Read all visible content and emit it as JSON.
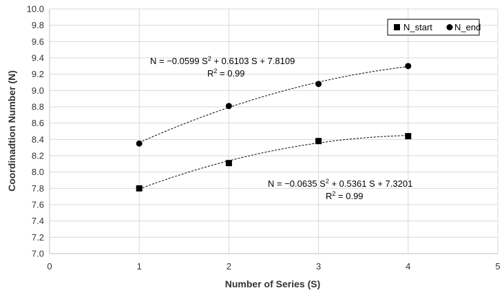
{
  "chart_data": {
    "type": "scatter",
    "title": "",
    "xlabel": "Number of Series (S)",
    "ylabel": "Coordinadtion Number (N)",
    "xlim": [
      0,
      5
    ],
    "ylim": [
      7.0,
      10.0
    ],
    "x_ticks": [
      "0",
      "1",
      "2",
      "3",
      "4",
      "5"
    ],
    "y_ticks": [
      "7.0",
      "7.2",
      "7.4",
      "7.6",
      "7.8",
      "8.0",
      "8.2",
      "8.4",
      "8.6",
      "8.8",
      "9.0",
      "9.2",
      "9.4",
      "9.6",
      "9.8",
      "10.0"
    ],
    "grid": true,
    "legend_position": "top-right",
    "series": [
      {
        "name": "N_start",
        "marker": "square",
        "color": "#000000",
        "x": [
          1,
          2,
          3,
          4
        ],
        "y": [
          7.8,
          8.11,
          8.38,
          8.44
        ],
        "trendline": {
          "type": "polynomial",
          "order": 2,
          "a": -0.0635,
          "b": 0.5361,
          "c": 7.3201
        }
      },
      {
        "name": "N_end",
        "marker": "circle",
        "color": "#000000",
        "x": [
          1,
          2,
          3,
          4
        ],
        "y": [
          8.35,
          8.81,
          9.08,
          9.3
        ],
        "trendline": {
          "type": "polynomial",
          "order": 2,
          "a": -0.0599,
          "b": 0.6103,
          "c": 7.8109
        }
      }
    ],
    "annotations": {
      "n_end_eq_pre": "N = −0.0599 S",
      "n_end_eq_sup": "2",
      "n_end_eq_post": " + 0.6103 S + 7.8109",
      "n_end_r2_pre": "R",
      "n_end_r2_sup": "2",
      "n_end_r2_post": " = 0.99",
      "n_start_eq_pre": "N = −0.0635 S",
      "n_start_eq_sup": "2",
      "n_start_eq_post": " + 0.5361 S + 7.3201",
      "n_start_r2_pre": "R",
      "n_start_r2_sup": "2",
      "n_start_r2_post": " = 0.99"
    }
  }
}
